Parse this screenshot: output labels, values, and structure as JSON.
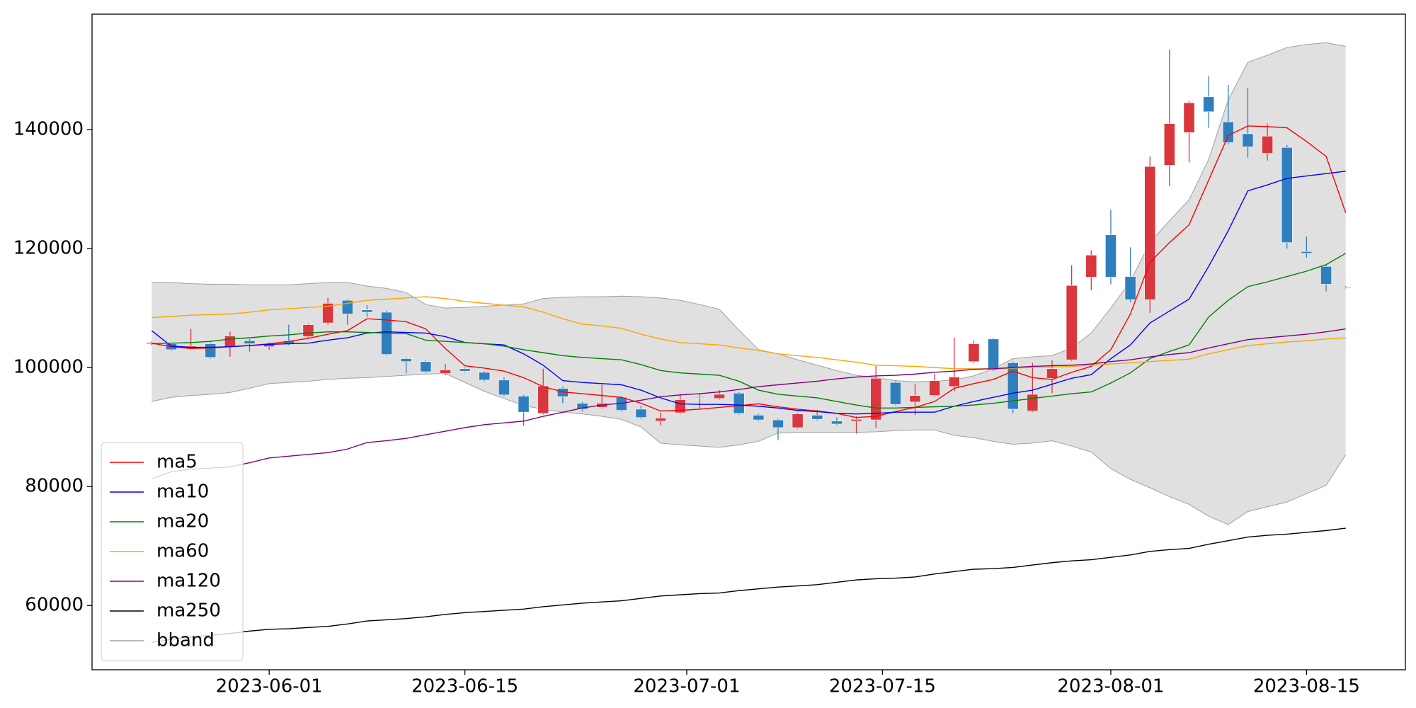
{
  "chart_data": {
    "type": "candlestick",
    "categories": [
      "2023-05-24",
      "2023-05-25",
      "2023-05-26",
      "2023-05-29",
      "2023-05-30",
      "2023-05-31",
      "2023-06-01",
      "2023-06-02",
      "2023-06-05",
      "2023-06-06",
      "2023-06-07",
      "2023-06-08",
      "2023-06-09",
      "2023-06-12",
      "2023-06-13",
      "2023-06-14",
      "2023-06-15",
      "2023-06-16",
      "2023-06-19",
      "2023-06-20",
      "2023-06-21",
      "2023-06-22",
      "2023-06-23",
      "2023-06-26",
      "2023-06-27",
      "2023-06-28",
      "2023-06-29",
      "2023-06-30",
      "2023-07-03",
      "2023-07-04",
      "2023-07-05",
      "2023-07-06",
      "2023-07-07",
      "2023-07-10",
      "2023-07-11",
      "2023-07-12",
      "2023-07-13",
      "2023-07-14",
      "2023-07-17",
      "2023-07-18",
      "2023-07-19",
      "2023-07-20",
      "2023-07-21",
      "2023-07-24",
      "2023-07-25",
      "2023-07-26",
      "2023-07-27",
      "2023-07-28",
      "2023-07-31",
      "2023-08-01",
      "2023-08-02",
      "2023-08-03",
      "2023-08-04",
      "2023-08-07",
      "2023-08-08",
      "2023-08-09",
      "2023-08-10",
      "2023-08-11",
      "2023-08-14",
      "2023-08-15",
      "2023-08-16",
      "2023-08-17"
    ],
    "open": [
      104000,
      104000,
      103400,
      104000,
      103500,
      104500,
      103500,
      104500,
      105200,
      107500,
      111300,
      109700,
      109300,
      101500,
      101000,
      99000,
      99800,
      99200,
      97900,
      95200,
      92300,
      96500,
      94000,
      93300,
      95000,
      93000,
      91000,
      92400,
      94900,
      94800,
      95700,
      92000,
      91200,
      89900,
      92000,
      91000,
      91000,
      91200,
      97500,
      94200,
      95300,
      96800,
      101000,
      104800,
      100800,
      92700,
      98200,
      101300,
      115200,
      122300,
      115300,
      111400,
      134000,
      139500,
      145500,
      141300,
      139300,
      136000,
      137000,
      119500,
      117000,
      113500
    ],
    "high": [
      104400,
      104200,
      106500,
      104200,
      106000,
      104800,
      104200,
      107200,
      107400,
      111700,
      111500,
      110500,
      109600,
      101700,
      101200,
      100600,
      100000,
      99400,
      98300,
      95400,
      99800,
      96800,
      94200,
      97100,
      95200,
      93600,
      92400,
      95600,
      95700,
      96200,
      95900,
      92200,
      91400,
      92400,
      92900,
      91600,
      91800,
      100300,
      97700,
      97300,
      98900,
      105000,
      104500,
      105000,
      101000,
      100800,
      101200,
      117200,
      119700,
      126500,
      120200,
      135500,
      153500,
      144800,
      149000,
      147500,
      147000,
      141000,
      137400,
      122000,
      117300,
      113700
    ],
    "low": [
      103800,
      102800,
      103200,
      101500,
      101800,
      102700,
      103000,
      103800,
      105000,
      107200,
      107200,
      108500,
      102000,
      99000,
      99100,
      98700,
      99200,
      97700,
      95200,
      90200,
      92100,
      94000,
      92600,
      93100,
      92600,
      91400,
      90300,
      92200,
      93000,
      94600,
      92100,
      91000,
      87800,
      89700,
      91100,
      90300,
      88900,
      89800,
      93600,
      92000,
      95100,
      96000,
      100700,
      99400,
      92300,
      92500,
      95700,
      101100,
      113000,
      114000,
      111000,
      109200,
      130500,
      134500,
      140300,
      137500,
      135300,
      134800,
      120000,
      118500,
      112800,
      113300
    ],
    "close": [
      104200,
      103000,
      103600,
      101700,
      105300,
      104000,
      104000,
      104000,
      107200,
      110800,
      109000,
      109300,
      102200,
      101000,
      99300,
      99600,
      99400,
      97900,
      95400,
      92500,
      96900,
      95100,
      93000,
      94000,
      92800,
      91600,
      91500,
      94600,
      95000,
      95500,
      92300,
      91200,
      89900,
      92200,
      91300,
      90500,
      91300,
      98200,
      93800,
      95300,
      97800,
      98400,
      104000,
      99600,
      93000,
      95500,
      99800,
      113800,
      118900,
      115200,
      111400,
      133800,
      141000,
      144500,
      143000,
      137800,
      137100,
      138900,
      121000,
      119200,
      114000,
      113500
    ],
    "up_color": "#d9363e",
    "down_color": "#2f7fbf",
    "series": [
      {
        "name": "ma5",
        "color": "#ff0000",
        "values": [
          104100,
          103500,
          103200,
          103300,
          103500,
          103700,
          104000,
          104400,
          104900,
          105600,
          106200,
          108200,
          108000,
          107700,
          106500,
          103200,
          100300,
          99900,
          99400,
          98300,
          96800,
          95900,
          95600,
          95300,
          95000,
          94000,
          92700,
          92800,
          93000,
          93300,
          93600,
          93900,
          93400,
          93000,
          92700,
          92300,
          91600,
          91800,
          92600,
          93300,
          94300,
          96500,
          97300,
          98000,
          99400,
          98300,
          98000,
          99200,
          100200,
          103000,
          109000,
          117700,
          121000,
          124000,
          131500,
          139000,
          140600,
          140500,
          140300,
          138000,
          135500,
          126000
        ]
      },
      {
        "name": "ma10",
        "color": "#0000ff",
        "values": [
          106200,
          103600,
          103400,
          103400,
          103500,
          103700,
          103900,
          104000,
          104100,
          104600,
          105000,
          105800,
          106000,
          105900,
          105800,
          105200,
          104200,
          104000,
          103800,
          102300,
          100400,
          97800,
          97500,
          97300,
          97100,
          96200,
          94900,
          93900,
          93800,
          93800,
          93700,
          93500,
          93200,
          92800,
          92600,
          92300,
          92200,
          92300,
          92500,
          92500,
          92500,
          93500,
          94300,
          95000,
          95700,
          96200,
          97200,
          98200,
          98800,
          101500,
          103800,
          107500,
          109500,
          111500,
          117000,
          123000,
          129700,
          130700,
          131800,
          132200,
          132600,
          133000
        ]
      },
      {
        "name": "ma20",
        "color": "#008000",
        "values": [
          104000,
          104100,
          104200,
          104400,
          104800,
          105000,
          105300,
          105500,
          105800,
          106000,
          106000,
          105900,
          105800,
          105700,
          104600,
          104400,
          104200,
          104000,
          103600,
          103000,
          102500,
          102000,
          101700,
          101500,
          101300,
          100500,
          99500,
          99100,
          98900,
          98700,
          97700,
          96200,
          95500,
          95200,
          94900,
          94300,
          93700,
          93200,
          93200,
          93300,
          93400,
          93500,
          93700,
          94000,
          94400,
          94800,
          95200,
          95600,
          95900,
          97400,
          99100,
          101500,
          102700,
          103800,
          108500,
          111300,
          113600,
          114400,
          115300,
          116200,
          117300,
          119200
        ]
      },
      {
        "name": "ma60",
        "color": "#ffa500",
        "values": [
          108400,
          108600,
          108800,
          108900,
          109000,
          109300,
          109700,
          109900,
          110100,
          110300,
          110800,
          111300,
          111500,
          111700,
          111900,
          111600,
          111100,
          110800,
          110500,
          110200,
          109300,
          108200,
          107300,
          107000,
          106600,
          105600,
          104800,
          104200,
          104000,
          103800,
          103300,
          102900,
          102300,
          102000,
          101700,
          101300,
          100900,
          100400,
          100300,
          100200,
          100000,
          99800,
          99800,
          99800,
          99900,
          100000,
          100100,
          100200,
          100400,
          100600,
          100800,
          101000,
          101200,
          101400,
          102300,
          103000,
          103700,
          104000,
          104300,
          104500,
          104800,
          105000
        ]
      },
      {
        "name": "ma120",
        "color": "#800080",
        "values": [
          81300,
          82500,
          82900,
          83100,
          83300,
          84000,
          84800,
          85100,
          85400,
          85700,
          86300,
          87400,
          87700,
          88100,
          88700,
          89300,
          89900,
          90400,
          90700,
          91000,
          91800,
          92500,
          93200,
          93700,
          94000,
          94500,
          95100,
          95400,
          95600,
          95900,
          96300,
          96800,
          97100,
          97400,
          97700,
          98100,
          98400,
          98600,
          98700,
          98900,
          99200,
          99400,
          99700,
          99800,
          100000,
          100200,
          100300,
          100400,
          100600,
          101000,
          101300,
          101800,
          102200,
          102500,
          103300,
          104000,
          104700,
          105000,
          105300,
          105600,
          106000,
          106500
        ]
      },
      {
        "name": "ma250",
        "color": "#000000",
        "values": [
          53800,
          54300,
          54700,
          55000,
          55300,
          55700,
          56000,
          56100,
          56300,
          56500,
          56900,
          57400,
          57600,
          57800,
          58100,
          58500,
          58800,
          59000,
          59200,
          59400,
          59800,
          60100,
          60400,
          60600,
          60800,
          61200,
          61600,
          61800,
          62000,
          62100,
          62500,
          62800,
          63100,
          63300,
          63500,
          63900,
          64300,
          64500,
          64600,
          64800,
          65300,
          65700,
          66100,
          66200,
          66400,
          66800,
          67200,
          67500,
          67700,
          68100,
          68500,
          69100,
          69400,
          69600,
          70300,
          70900,
          71500,
          71800,
          72000,
          72300,
          72600,
          73000
        ]
      }
    ],
    "band": {
      "name": "bband",
      "color": "#a0a0a0",
      "fill": "#e0e0e0",
      "upper": [
        114300,
        114300,
        114100,
        114000,
        114000,
        113900,
        113900,
        113900,
        114100,
        114300,
        114300,
        113700,
        113300,
        112600,
        110600,
        110000,
        110100,
        110300,
        110500,
        110700,
        111600,
        111800,
        111900,
        111900,
        112000,
        111900,
        111700,
        111300,
        110600,
        109800,
        106300,
        103000,
        102300,
        101300,
        100400,
        99500,
        98700,
        98300,
        97800,
        97600,
        97700,
        97900,
        98600,
        99800,
        101500,
        101800,
        102000,
        103300,
        105800,
        110000,
        114500,
        121000,
        124700,
        128200,
        135000,
        145000,
        151300,
        152500,
        153800,
        154300,
        154600,
        154000
      ],
      "lower": [
        94300,
        95000,
        95300,
        95500,
        95800,
        96500,
        97300,
        97500,
        97700,
        98000,
        98200,
        98300,
        98500,
        98700,
        98900,
        99000,
        97500,
        96000,
        94800,
        93600,
        93000,
        92500,
        92200,
        91800,
        91300,
        90000,
        87300,
        87000,
        86800,
        86600,
        87000,
        87600,
        89000,
        89100,
        89100,
        89100,
        89100,
        89200,
        89400,
        89500,
        89500,
        88600,
        88200,
        87600,
        87100,
        87300,
        87700,
        86800,
        85800,
        83000,
        81200,
        79800,
        78300,
        77000,
        75000,
        73600,
        75800,
        76600,
        77400,
        78800,
        80200,
        85300
      ]
    },
    "xticks": [
      "2023-06-01",
      "2023-06-15",
      "2023-07-01",
      "2023-07-15",
      "2023-08-01",
      "2023-08-15"
    ],
    "ylim": [
      49200,
      159400
    ],
    "yticks": [
      60000,
      80000,
      100000,
      120000,
      140000
    ],
    "legend": "lower left"
  }
}
